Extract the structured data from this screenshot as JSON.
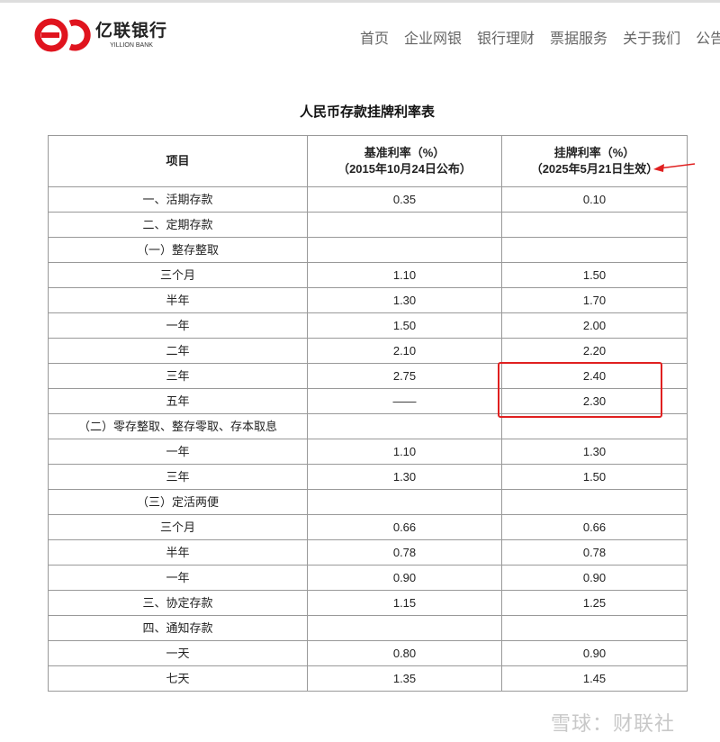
{
  "brand": {
    "name_cn": "亿联银行",
    "name_en": "YILLION BANK",
    "color": "#e0141e"
  },
  "nav": [
    "首页",
    "企业网银",
    "银行理财",
    "票据服务",
    "关于我们",
    "公告"
  ],
  "title": "人民币存款挂牌利率表",
  "table": {
    "headers": [
      {
        "l1": "项目",
        "l2": ""
      },
      {
        "l1": "基准利率（%）",
        "l2": "（2015年10月24日公布）"
      },
      {
        "l1": "挂牌利率（%）",
        "l2": "（2025年5月21日生效）"
      }
    ],
    "rows": [
      [
        "一、活期存款",
        "0.35",
        "0.10"
      ],
      [
        "二、定期存款",
        "",
        ""
      ],
      [
        "（一）整存整取",
        "",
        ""
      ],
      [
        "三个月",
        "1.10",
        "1.50"
      ],
      [
        "半年",
        "1.30",
        "1.70"
      ],
      [
        "一年",
        "1.50",
        "2.00"
      ],
      [
        "二年",
        "2.10",
        "2.20"
      ],
      [
        "三年",
        "2.75",
        "2.40"
      ],
      [
        "五年",
        "——",
        "2.30"
      ],
      [
        "（二）零存整取、整存零取、存本取息",
        "",
        ""
      ],
      [
        "一年",
        "1.10",
        "1.30"
      ],
      [
        "三年",
        "1.30",
        "1.50"
      ],
      [
        "（三）定活两便",
        "",
        ""
      ],
      [
        "三个月",
        "0.66",
        "0.66"
      ],
      [
        "半年",
        "0.78",
        "0.78"
      ],
      [
        "一年",
        "0.90",
        "0.90"
      ],
      [
        "三、协定存款",
        "1.15",
        "1.25"
      ],
      [
        "四、通知存款",
        "",
        ""
      ],
      [
        "一天",
        "0.80",
        "0.90"
      ],
      [
        "七天",
        "1.35",
        "1.45"
      ]
    ]
  },
  "annotation_color": "#e02020",
  "watermark": "雪球：财联社"
}
